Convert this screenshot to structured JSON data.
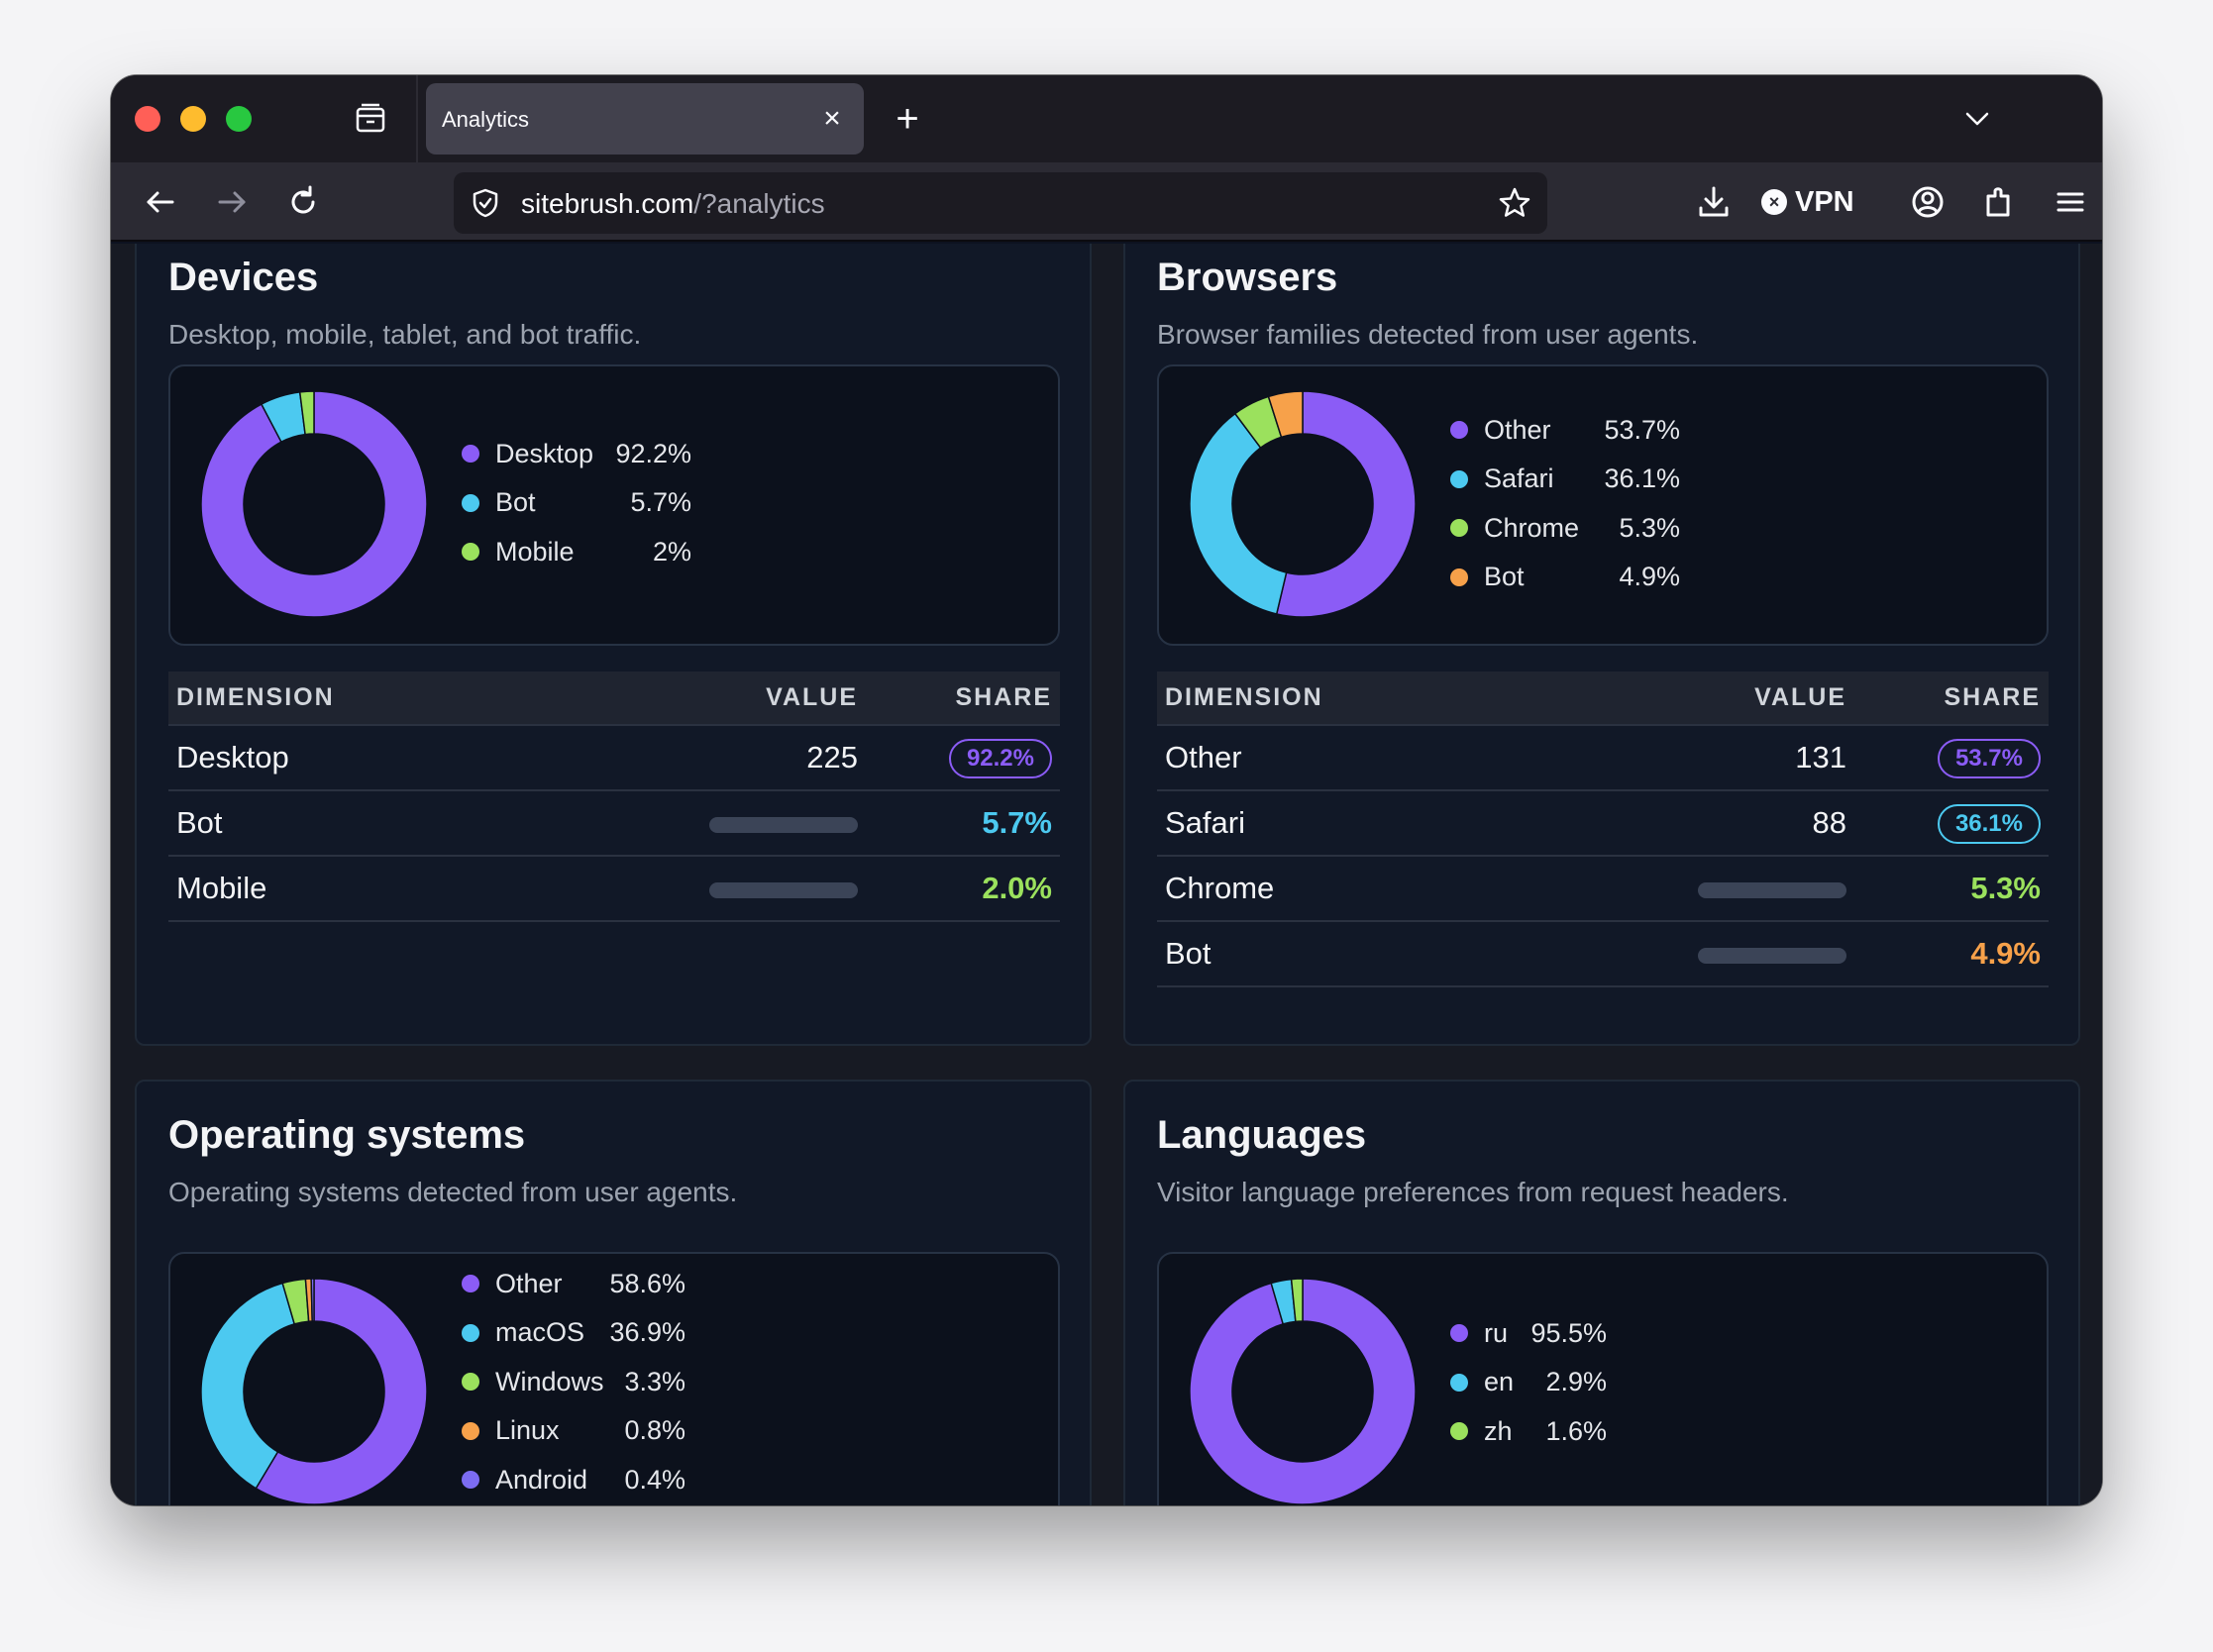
{
  "browser": {
    "tab_title": "Analytics",
    "url_domain": "sitebrush.com",
    "url_path": "/?analytics",
    "vpn_label": "VPN"
  },
  "colors": {
    "purple": "#8b5cf6",
    "blue": "#4cc9f0",
    "green": "#9be15d",
    "orange": "#f7a14a",
    "indigo": "#7c6cf2"
  },
  "devices": {
    "title": "Devices",
    "subtitle": "Desktop, mobile, tablet, and bot traffic.",
    "legend": [
      {
        "name": "Desktop",
        "value": "92.2%",
        "color": "#8b5cf6",
        "share": 92.2
      },
      {
        "name": "Bot",
        "value": "5.7%",
        "color": "#4cc9f0",
        "share": 5.7
      },
      {
        "name": "Mobile",
        "value": "2%",
        "color": "#9be15d",
        "share": 2.0
      }
    ],
    "table": {
      "headers": [
        "DIMENSION",
        "VALUE",
        "SHARE"
      ],
      "rows": [
        {
          "dimension": "Desktop",
          "value": "225",
          "share": "92.2%",
          "color": "#8b5cf6",
          "style": "badge"
        },
        {
          "dimension": "Bot",
          "value": "",
          "share": "5.7%",
          "color": "#4cc9f0",
          "style": "bar"
        },
        {
          "dimension": "Mobile",
          "value": "",
          "share": "2.0%",
          "color": "#9be15d",
          "style": "bar"
        }
      ]
    }
  },
  "browsers": {
    "title": "Browsers",
    "subtitle": "Browser families detected from user agents.",
    "legend": [
      {
        "name": "Other",
        "value": "53.7%",
        "color": "#8b5cf6",
        "share": 53.7
      },
      {
        "name": "Safari",
        "value": "36.1%",
        "color": "#4cc9f0",
        "share": 36.1
      },
      {
        "name": "Chrome",
        "value": "5.3%",
        "color": "#9be15d",
        "share": 5.3
      },
      {
        "name": "Bot",
        "value": "4.9%",
        "color": "#f7a14a",
        "share": 4.9
      }
    ],
    "table": {
      "headers": [
        "DIMENSION",
        "VALUE",
        "SHARE"
      ],
      "rows": [
        {
          "dimension": "Other",
          "value": "131",
          "share": "53.7%",
          "color": "#8b5cf6",
          "style": "badge"
        },
        {
          "dimension": "Safari",
          "value": "88",
          "share": "36.1%",
          "color": "#4cc9f0",
          "style": "badge"
        },
        {
          "dimension": "Chrome",
          "value": "",
          "share": "5.3%",
          "color": "#9be15d",
          "style": "bar"
        },
        {
          "dimension": "Bot",
          "value": "",
          "share": "4.9%",
          "color": "#f7a14a",
          "style": "bar"
        }
      ]
    }
  },
  "os": {
    "title": "Operating systems",
    "subtitle": "Operating systems detected from user agents.",
    "legend": [
      {
        "name": "Other",
        "value": "58.6%",
        "color": "#8b5cf6",
        "share": 58.6
      },
      {
        "name": "macOS",
        "value": "36.9%",
        "color": "#4cc9f0",
        "share": 36.9
      },
      {
        "name": "Windows",
        "value": "3.3%",
        "color": "#9be15d",
        "share": 3.3
      },
      {
        "name": "Linux",
        "value": "0.8%",
        "color": "#f7a14a",
        "share": 0.8
      },
      {
        "name": "Android",
        "value": "0.4%",
        "color": "#7c6cf2",
        "share": 0.4
      }
    ]
  },
  "languages": {
    "title": "Languages",
    "subtitle": "Visitor language preferences from request headers.",
    "legend": [
      {
        "name": "ru",
        "value": "95.5%",
        "color": "#8b5cf6",
        "share": 95.5
      },
      {
        "name": "en",
        "value": "2.9%",
        "color": "#4cc9f0",
        "share": 2.9
      },
      {
        "name": "zh",
        "value": "1.6%",
        "color": "#9be15d",
        "share": 1.6
      }
    ]
  }
}
